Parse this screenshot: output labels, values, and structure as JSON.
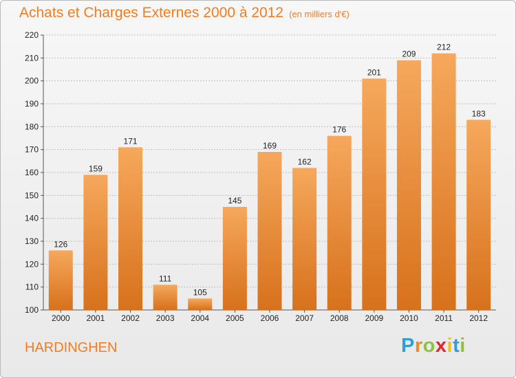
{
  "header": {
    "title": "Achats et Charges Externes 2000 à 2012",
    "unit": "(en milliers d'€)"
  },
  "footer": {
    "commune": "HARDINGHEN",
    "logo": {
      "letters": [
        "P",
        "r",
        "o",
        "x",
        "i",
        "t",
        "i"
      ],
      "colors": [
        "#2e9fd8",
        "#f08a1d",
        "#8cc43f",
        "#e3262e",
        "#f3c016",
        "#2e9fd8",
        "#8cc43f"
      ]
    }
  },
  "colors": {
    "title": "#f07d22",
    "bar_top": "#f6a85c",
    "bar_bottom": "#d7711c",
    "grid": "#bdbdbd"
  },
  "chart_data": {
    "type": "bar",
    "categories": [
      "2000",
      "2001",
      "2002",
      "2003",
      "2004",
      "2005",
      "2006",
      "2007",
      "2008",
      "2009",
      "2010",
      "2011",
      "2012"
    ],
    "values": [
      126,
      159,
      171,
      111,
      105,
      145,
      169,
      162,
      176,
      201,
      209,
      212,
      183
    ],
    "ylim": [
      100,
      220
    ],
    "yticks": [
      100,
      110,
      120,
      130,
      140,
      150,
      160,
      170,
      180,
      190,
      200,
      210,
      220
    ],
    "grid": true,
    "data_labels": true
  }
}
